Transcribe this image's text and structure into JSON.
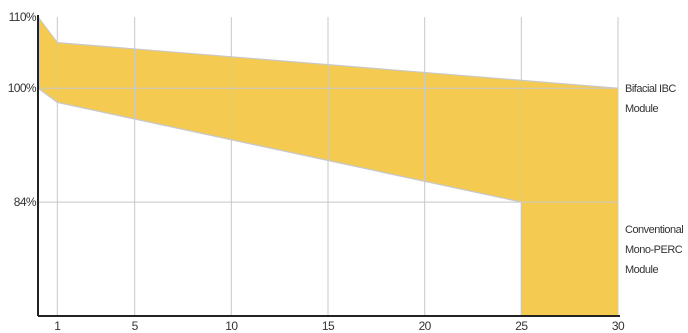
{
  "chart_data": {
    "type": "area",
    "title": "",
    "xlabel": "",
    "ylabel": "",
    "x_ticks": [
      "1",
      "5",
      "10",
      "15",
      "20",
      "25",
      "30"
    ],
    "y_ticks": [
      "110%",
      "100%",
      "84%"
    ],
    "xlim": [
      0,
      30
    ],
    "ylim": [
      68,
      110
    ],
    "grid": true,
    "colors": {
      "band": "#F4CB50",
      "grid": "#C8C8C8",
      "axis": "#222222"
    },
    "series": [
      {
        "name": "Bifacial IBC Module",
        "label_lines": [
          "Bifacial IBC",
          "Module"
        ],
        "x": [
          0,
          1,
          30
        ],
        "upper": [
          110,
          106.4,
          100.0
        ]
      },
      {
        "name": "Conventional Mono-PERC Module",
        "label_lines": [
          "Conventional",
          "Mono-PERC",
          "Module"
        ],
        "x": [
          0,
          1,
          25,
          25,
          30
        ],
        "lower": [
          100.0,
          98.0,
          84.0,
          68.0,
          68.0
        ]
      }
    ]
  }
}
